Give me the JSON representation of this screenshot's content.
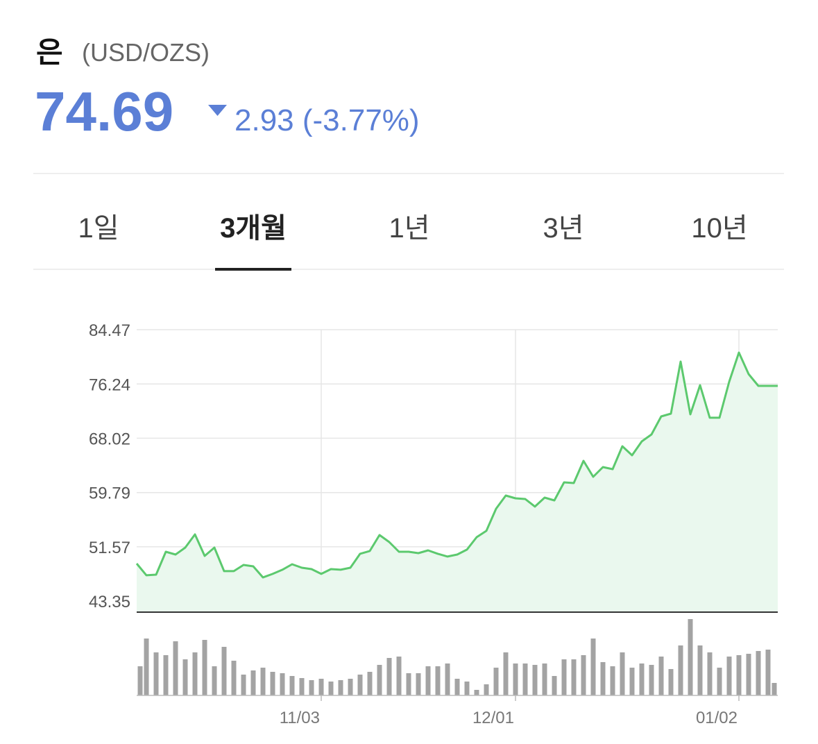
{
  "header": {
    "name": "은",
    "unit": "(USD/OZS)",
    "price": "74.69",
    "change": "2.93 (-3.77%)"
  },
  "tabs": [
    "1일",
    "3개월",
    "1년",
    "3년",
    "10년"
  ],
  "selected_tab": 1,
  "chart_data": {
    "type": "line",
    "color": "#5cc96e",
    "categories": [
      null,
      null,
      null,
      null,
      null,
      null,
      null,
      null,
      null,
      null,
      null,
      null,
      null,
      null,
      null,
      null,
      null,
      null,
      null,
      "11/03",
      null,
      null,
      null,
      null,
      null,
      null,
      null,
      null,
      null,
      null,
      null,
      null,
      null,
      null,
      null,
      null,
      null,
      null,
      null,
      "12/01",
      null,
      null,
      null,
      null,
      null,
      null,
      null,
      null,
      null,
      null,
      null,
      null,
      null,
      null,
      null,
      null,
      null,
      null,
      null,
      null,
      null,
      null,
      "01/02",
      null,
      null,
      null,
      null
    ],
    "values": [
      49.03,
      47.25,
      47.35,
      50.82,
      50.4,
      51.45,
      53.45,
      50.19,
      51.45,
      47.88,
      47.88,
      48.82,
      48.61,
      46.93,
      47.46,
      48.09,
      48.93,
      48.4,
      48.19,
      47.46,
      48.19,
      48.09,
      48.4,
      50.51,
      50.93,
      53.35,
      52.29,
      50.82,
      50.82,
      50.61,
      51.03,
      50.51,
      50.09,
      50.4,
      51.14,
      53.03,
      53.98,
      57.34,
      59.34,
      58.92,
      58.81,
      57.66,
      59.02,
      58.6,
      61.34,
      61.23,
      64.6,
      62.18,
      63.65,
      63.33,
      66.8,
      65.44,
      67.54,
      68.59,
      71.33,
      71.75,
      79.63,
      71.64,
      76.06,
      71.12,
      71.12,
      76.58,
      81.0,
      77.74,
      75.95,
      75.95,
      75.95
    ],
    "volume": [
      42,
      82,
      62,
      58,
      78,
      52,
      62,
      80,
      42,
      70,
      50,
      30,
      36,
      40,
      34,
      32,
      28,
      25,
      22,
      24,
      20,
      22,
      24,
      30,
      34,
      44,
      54,
      56,
      32,
      32,
      42,
      42,
      46,
      24,
      20,
      8,
      16,
      40,
      62,
      46,
      46,
      44,
      46,
      28,
      52,
      52,
      58,
      82,
      48,
      42,
      62,
      40,
      46,
      44,
      56,
      38,
      72,
      110,
      72,
      62,
      40,
      56,
      58,
      60,
      64,
      66,
      18
    ],
    "ylim": [
      41.67,
      84.47
    ],
    "yticks": [
      43.35,
      51.57,
      59.79,
      68.02,
      76.24,
      84.47
    ],
    "grid": true
  }
}
